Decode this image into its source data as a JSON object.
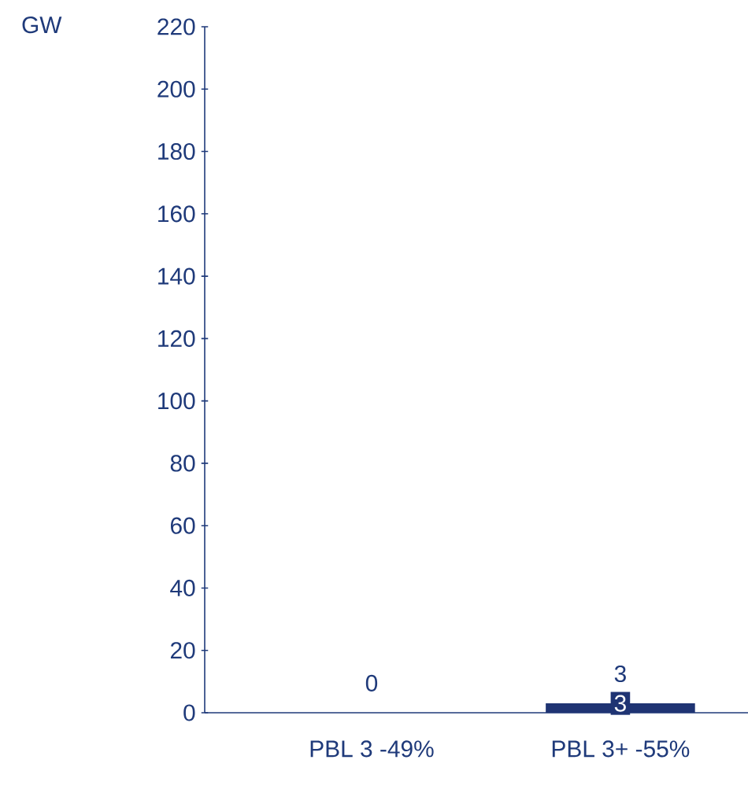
{
  "chart_data": {
    "type": "bar",
    "ylabel": "GW",
    "categories": [
      "PBL 3 -49%",
      "PBL 3+ -55%"
    ],
    "series": [
      {
        "color": "#1f3473",
        "values": [
          0,
          3
        ],
        "value_labels": [
          null,
          "3"
        ]
      }
    ],
    "totals": [
      "0",
      "3"
    ],
    "ylim": [
      0,
      220
    ],
    "yticks": [
      0,
      20,
      40,
      60,
      80,
      100,
      120,
      140,
      160,
      180,
      200,
      220
    ]
  }
}
